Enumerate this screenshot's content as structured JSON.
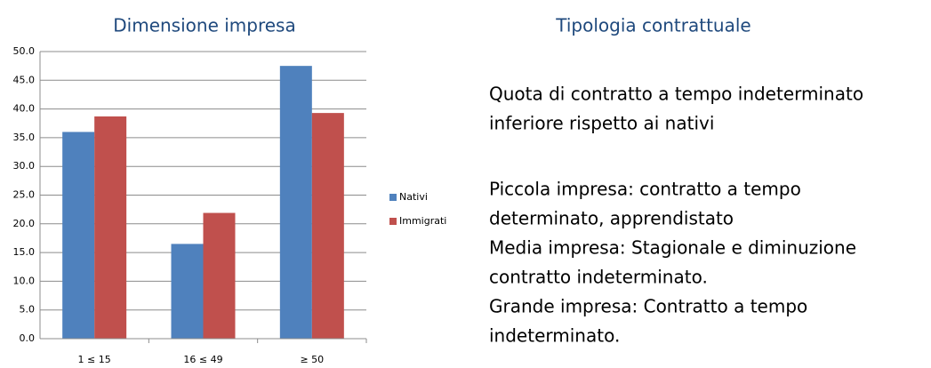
{
  "chart_data": {
    "type": "bar",
    "title": "Dimensione impresa",
    "categories": [
      "1 ≤ 15",
      "16 ≤ 49",
      "≥ 50"
    ],
    "series": [
      {
        "name": "Nativi",
        "color": "#4f81bd",
        "values": [
          36.0,
          16.5,
          47.5
        ]
      },
      {
        "name": "Immigrati",
        "color": "#c0504d",
        "values": [
          38.7,
          21.9,
          39.3
        ]
      }
    ],
    "ylim": [
      0,
      50
    ],
    "yticks": [
      {
        "value": 0,
        "label": "0.0"
      },
      {
        "value": 5,
        "label": "5.0"
      },
      {
        "value": 10,
        "label": "10.0"
      },
      {
        "value": 15,
        "label": "15.0"
      },
      {
        "value": 20,
        "label": "20.0"
      },
      {
        "value": 25,
        "label": "25.0"
      },
      {
        "value": 30,
        "label": "30.0"
      },
      {
        "value": 35,
        "label": "35.0"
      },
      {
        "value": 40,
        "label": "40.0"
      },
      {
        "value": 45,
        "label": "45.0"
      },
      {
        "value": 50,
        "label": "50.0"
      }
    ],
    "grid": true,
    "legend": "right"
  },
  "side_panel": {
    "title": "Tipologia contrattuale",
    "paragraphs": [
      [
        "Quota di contratto a tempo indeterminato",
        "inferiore rispetto ai nativi"
      ],
      [
        "Piccola impresa: contratto a tempo",
        "determinato, apprendistato",
        "Media impresa: Stagionale e diminuzione",
        "contratto indeterminato.",
        "Grande impresa: Contratto a tempo",
        "indeterminato."
      ]
    ]
  }
}
